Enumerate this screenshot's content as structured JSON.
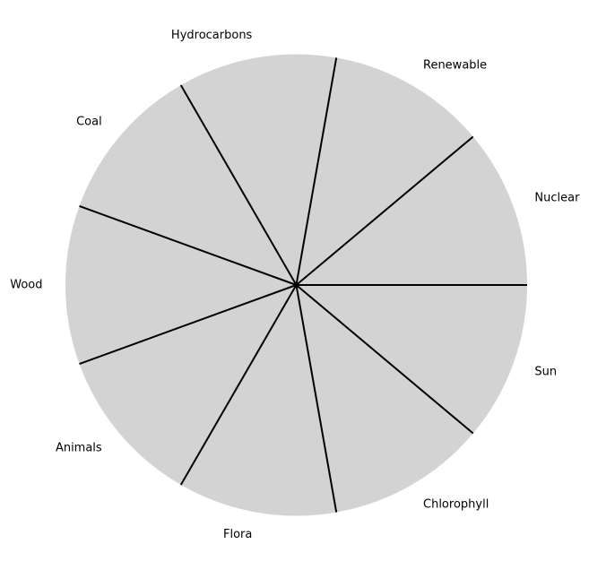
{
  "chart_data": {
    "type": "pie",
    "title": "",
    "categories": [
      "Nuclear",
      "Renewable",
      "Hydrocarbons",
      "Coal",
      "Wood",
      "Animals",
      "Flora",
      "Chlorophyll",
      "Sun"
    ],
    "values": [
      1,
      1,
      1,
      1,
      1,
      1,
      1,
      1,
      1
    ],
    "start_angle_deg": 0,
    "direction": "counterclockwise",
    "legend": "none",
    "slice_color": "#d3d3d3",
    "edge_color": "#000000"
  }
}
